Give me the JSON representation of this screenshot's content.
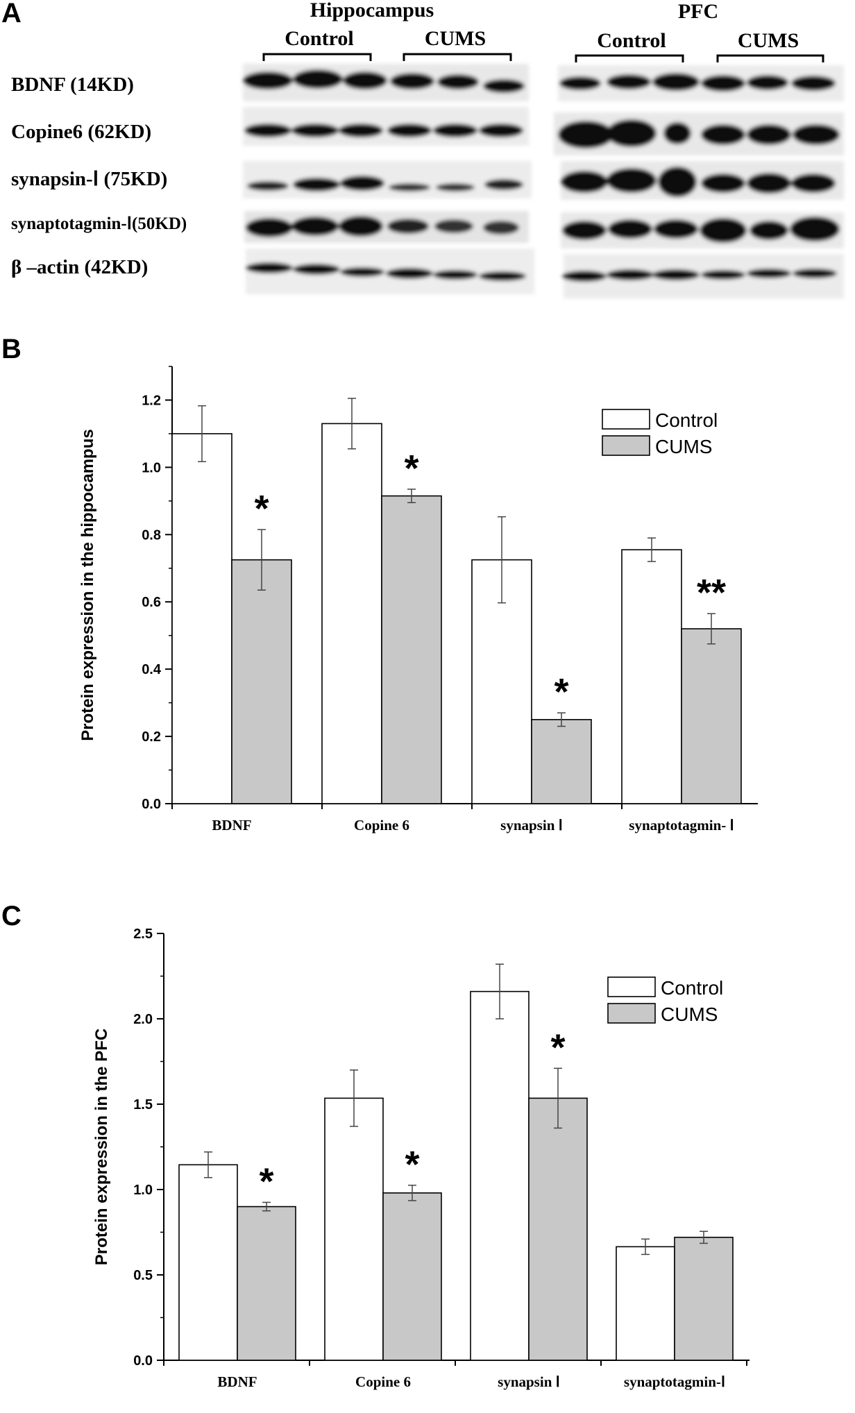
{
  "panel_a": {
    "letter": "A",
    "regions": [
      {
        "name": "Hippocampus",
        "groups": [
          "Control",
          "CUMS"
        ]
      },
      {
        "name": "PFC",
        "groups": [
          "Control",
          "CUMS"
        ]
      }
    ],
    "rows": [
      "BDNF (14KD)",
      "Copine6 (62KD)",
      "synapsin-Ⅰ (75KD)",
      "synaptotagmin-Ⅰ(50KD)",
      "β –actin (42KD)"
    ]
  },
  "chart_data": [
    {
      "type": "bar",
      "panel": "B",
      "title": "",
      "xlabel": "",
      "ylabel": "Protein expression in the hippocampus",
      "categories": [
        "BDNF",
        "Copine 6",
        "synapsin Ⅰ",
        "synaptotagmin- Ⅰ"
      ],
      "series": [
        {
          "name": "Control",
          "values": [
            1.1,
            1.13,
            0.725,
            0.755
          ],
          "errors": [
            0.083,
            0.075,
            0.128,
            0.035
          ],
          "color": "#ffffff"
        },
        {
          "name": "CUMS",
          "values": [
            0.725,
            0.915,
            0.25,
            0.52
          ],
          "errors": [
            0.09,
            0.02,
            0.02,
            0.045
          ],
          "color": "#c8c8c8",
          "significance": [
            "*",
            "*",
            "*",
            "**"
          ]
        }
      ],
      "ylim": [
        0,
        1.3
      ],
      "yticks": [
        "0.0",
        "0.2",
        "0.4",
        "0.6",
        "0.8",
        "1.0",
        "1.2"
      ],
      "ytick_values": [
        0,
        0.2,
        0.4,
        0.6,
        0.8,
        1.0,
        1.2
      ],
      "legend_position": "top-right",
      "grid": false
    },
    {
      "type": "bar",
      "panel": "C",
      "title": "",
      "xlabel": "",
      "ylabel": "Protein expression in the PFC",
      "categories": [
        "BDNF",
        "Copine 6",
        "synapsin Ⅰ",
        "synaptotagmin-Ⅰ"
      ],
      "series": [
        {
          "name": "Control",
          "values": [
            1.145,
            1.535,
            2.16,
            0.665
          ],
          "errors": [
            0.075,
            0.165,
            0.16,
            0.045
          ],
          "color": "#ffffff"
        },
        {
          "name": "CUMS",
          "values": [
            0.9,
            0.98,
            1.535,
            0.72
          ],
          "errors": [
            0.025,
            0.045,
            0.175,
            0.035
          ],
          "color": "#c8c8c8",
          "significance": [
            "*",
            "*",
            "*",
            ""
          ]
        }
      ],
      "ylim": [
        0,
        2.5
      ],
      "yticks": [
        "0.0",
        "0.5",
        "1.0",
        "1.5",
        "2.0",
        "2.5"
      ],
      "ytick_values": [
        0,
        0.5,
        1.0,
        1.5,
        2.0,
        2.5
      ],
      "legend_position": "top-right",
      "grid": false
    }
  ]
}
